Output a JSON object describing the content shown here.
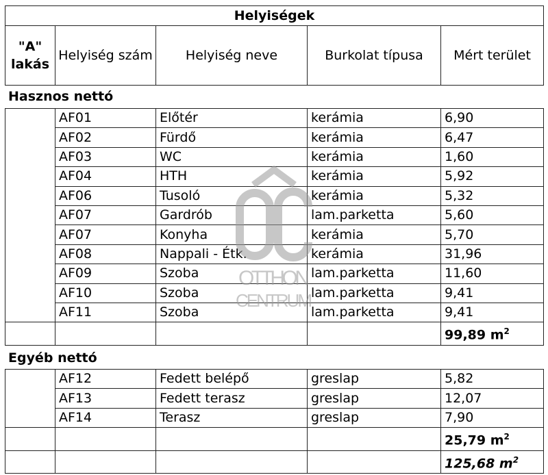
{
  "title": "Helyiségek",
  "headers": {
    "col1": "\"A\" lakás",
    "col2": "Helyiség szám",
    "col3": "Helyiség neve",
    "col4": "Burkolat típusa",
    "col5": "Mért terület"
  },
  "sections": [
    {
      "label": "Hasznos nettó",
      "rows": [
        [
          "AF01",
          "Előtér",
          "kerámia",
          "6,90"
        ],
        [
          "AF02",
          "Fürdő",
          "kerámia",
          "6,47"
        ],
        [
          "AF03",
          "WC",
          "kerámia",
          "1,60"
        ],
        [
          "AF04",
          "HTH",
          "kerámia",
          "5,92"
        ],
        [
          "AF06",
          "Tusoló",
          "kerámia",
          "5,32"
        ],
        [
          "AF07",
          "Gardrób",
          "lam.parketta",
          "5,60"
        ],
        [
          "AF07",
          "Konyha",
          "kerámia",
          "5,70"
        ],
        [
          "AF08",
          "Nappali - Étk.",
          "kerámia",
          "31,96"
        ],
        [
          "AF09",
          "Szoba",
          "lam.parketta",
          "11,60"
        ],
        [
          "AF10",
          "Szoba",
          "lam.parketta",
          "9,41"
        ],
        [
          "AF11",
          "Szoba",
          "lam.parketta",
          "9,41"
        ]
      ],
      "total": "99,89 m",
      "total_unit_sup": "2"
    },
    {
      "label": "Egyéb nettó",
      "rows": [
        [
          "AF12",
          "Fedett belépő",
          "greslap",
          "5,82"
        ],
        [
          "AF13",
          "Fedett terasz",
          "greslap",
          "12,07"
        ],
        [
          "AF14",
          "Terasz",
          "greslap",
          "7,90"
        ]
      ],
      "total": "25,79 m",
      "total_unit_sup": "2"
    }
  ],
  "grand_total": "125,68 m",
  "grand_total_sup": "2",
  "watermark": {
    "logo": "OC",
    "line1": "OTTHON",
    "line2": "CENTRUM",
    "color": "#9a9a9a"
  }
}
